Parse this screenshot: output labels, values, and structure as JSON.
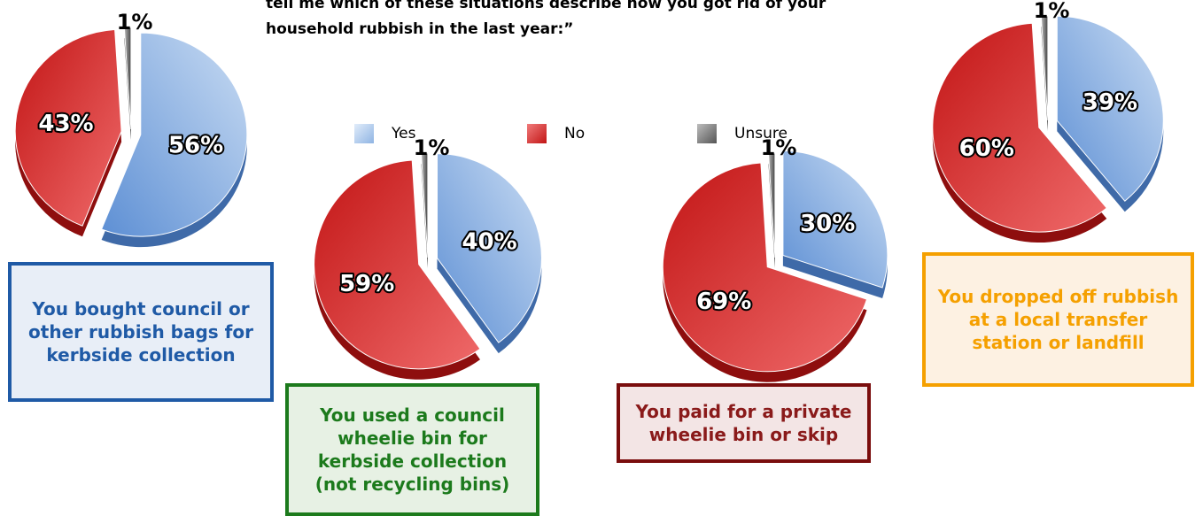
{
  "question": {
    "line1": "tell me which of these situations describe how you got rid of your",
    "line2": "household rubbish in the last year:”"
  },
  "legend": [
    {
      "label": "Yes",
      "color": "#8fb4e3"
    },
    {
      "label": "No",
      "color": "#d42a2a"
    },
    {
      "label": "Unsure",
      "color": "#7a7a7a"
    }
  ],
  "chart_data": [
    {
      "type": "pie",
      "categories": [
        "Yes",
        "No",
        "Unsure"
      ],
      "values": [
        56,
        43,
        1
      ],
      "labels": [
        "56%",
        "43%",
        "1%"
      ],
      "caption": "You bought council or other rubbish bags for kerbside collection",
      "caption_color": "#1f5aa6",
      "caption_bg": "#e8eef7"
    },
    {
      "type": "pie",
      "categories": [
        "Yes",
        "No",
        "Unsure"
      ],
      "values": [
        40,
        59,
        1
      ],
      "labels": [
        "40%",
        "59%",
        "1%"
      ],
      "caption": "You used a council wheelie bin for kerbside collection (not recycling bins)",
      "caption_color": "#1c7a1c",
      "caption_bg": "#e7f1e4"
    },
    {
      "type": "pie",
      "categories": [
        "Yes",
        "No",
        "Unsure"
      ],
      "values": [
        30,
        69,
        1
      ],
      "labels": [
        "30%",
        "69%",
        "1%"
      ],
      "caption": "You paid for a private wheelie bin or skip",
      "caption_color": "#8a1a1a",
      "caption_bg": "#f3e5e5"
    },
    {
      "type": "pie",
      "categories": [
        "Yes",
        "No",
        "Unsure"
      ],
      "values": [
        39,
        60,
        1
      ],
      "labels": [
        "39%",
        "60%",
        "1%"
      ],
      "caption": "You dropped off rubbish at a local transfer station or landfill",
      "caption_color": "#f5a000",
      "caption_bg": "#fdf1e2"
    }
  ],
  "colors": {
    "yes_light": "#c9dcf3",
    "yes_dark": "#5d8fd4",
    "no_light": "#ef6a6a",
    "no_dark": "#c21515",
    "unsure": "#7a7a7a"
  }
}
